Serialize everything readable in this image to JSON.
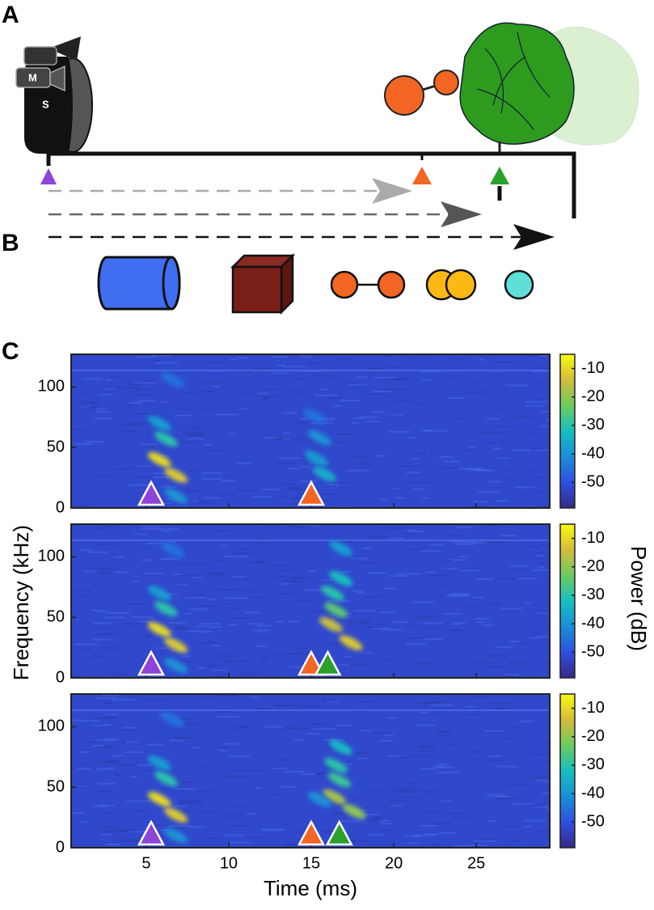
{
  "panel_labels": [
    "A",
    "B",
    "C"
  ],
  "bat_labels": {
    "mic": "M",
    "speaker": "S"
  },
  "chart_data": {
    "type": "spectrogram",
    "xlabel": "Time (ms)",
    "ylabel": "Frequency (kHz)",
    "colorbar_label": "Power (dB)",
    "xlim": [
      0.45,
      29.45
    ],
    "xticks": [
      5,
      10,
      15,
      20,
      25
    ],
    "ylim": [
      0,
      127
    ],
    "yticks": [
      0,
      50,
      100
    ],
    "clim": [
      -59,
      -5
    ],
    "cticks": [
      -10,
      -20,
      -30,
      -40,
      -50
    ],
    "background_power": -52,
    "spectrograms": [
      {
        "markers": [
          {
            "time": 5.3,
            "color": "#8e44d6"
          },
          {
            "time": 15,
            "color": "#f26522"
          }
        ],
        "echoes": [
          [
            5.8,
            40,
            -10
          ],
          [
            6.8,
            27,
            -12
          ],
          [
            6.2,
            57,
            -30
          ],
          [
            5.8,
            70,
            -38
          ],
          [
            6.6,
            106,
            -45
          ],
          [
            6.8,
            10,
            -40
          ],
          [
            15.3,
            41,
            -38
          ],
          [
            15.8,
            28,
            -35
          ],
          [
            15.5,
            58,
            -40
          ],
          [
            15.2,
            76,
            -45
          ]
        ]
      },
      {
        "markers": [
          {
            "time": 5.3,
            "color": "#8e44d6"
          },
          {
            "time": 15,
            "color": "#f26522"
          },
          {
            "time": 16,
            "color": "#2ca02c"
          }
        ],
        "echoes": [
          [
            5.8,
            40,
            -10
          ],
          [
            6.8,
            27,
            -12
          ],
          [
            6.2,
            57,
            -30
          ],
          [
            5.8,
            70,
            -38
          ],
          [
            6.6,
            106,
            -45
          ],
          [
            6.8,
            10,
            -40
          ],
          [
            16.2,
            44,
            -15
          ],
          [
            17.4,
            29,
            -12
          ],
          [
            16.5,
            56,
            -25
          ],
          [
            16.3,
            70,
            -30
          ],
          [
            16.8,
            82,
            -32
          ],
          [
            16.8,
            107,
            -38
          ]
        ]
      },
      {
        "markers": [
          {
            "time": 5.3,
            "color": "#8e44d6"
          },
          {
            "time": 15,
            "color": "#f26522"
          },
          {
            "time": 16.7,
            "color": "#2ca02c"
          }
        ],
        "echoes": [
          [
            5.8,
            40,
            -10
          ],
          [
            6.8,
            27,
            -12
          ],
          [
            6.2,
            57,
            -30
          ],
          [
            5.8,
            70,
            -38
          ],
          [
            6.6,
            106,
            -45
          ],
          [
            6.8,
            10,
            -40
          ],
          [
            16.4,
            42,
            -18
          ],
          [
            17.6,
            30,
            -20
          ],
          [
            16.7,
            56,
            -28
          ],
          [
            16.5,
            68,
            -30
          ],
          [
            16.8,
            83,
            -33
          ],
          [
            15.5,
            40,
            -40
          ]
        ]
      }
    ]
  }
}
